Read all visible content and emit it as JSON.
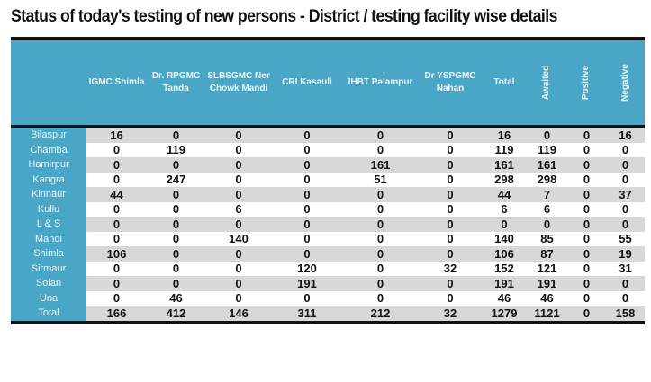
{
  "title": "Status of today's testing of new persons - District / testing facility wise details",
  "headers": [
    "",
    "IGMC Shimla",
    "Dr. RPGMC Tanda",
    "SLBSGMC Ner Chowk Mandi",
    "CRI Kasauli",
    "IHBT Palampur",
    "Dr YSPGMC Nahan",
    "Total",
    "Awaited",
    "Positive",
    "Negative"
  ],
  "rows": [
    [
      "Bilaspur",
      "16",
      "0",
      "0",
      "0",
      "0",
      "0",
      "16",
      "0",
      "0",
      "16"
    ],
    [
      "Chamba",
      "0",
      "119",
      "0",
      "0",
      "0",
      "0",
      "119",
      "119",
      "0",
      "0"
    ],
    [
      "Hamirpur",
      "0",
      "0",
      "0",
      "0",
      "161",
      "0",
      "161",
      "161",
      "0",
      "0"
    ],
    [
      "Kangra",
      "0",
      "247",
      "0",
      "0",
      "51",
      "0",
      "298",
      "298",
      "0",
      "0"
    ],
    [
      "Kinnaur",
      "44",
      "0",
      "0",
      "0",
      "0",
      "0",
      "44",
      "7",
      "0",
      "37"
    ],
    [
      "Kullu",
      "0",
      "0",
      "6",
      "0",
      "0",
      "0",
      "6",
      "6",
      "0",
      "0"
    ],
    [
      "L & S",
      "0",
      "0",
      "0",
      "0",
      "0",
      "0",
      "0",
      "0",
      "0",
      "0"
    ],
    [
      "Mandi",
      "0",
      "0",
      "140",
      "0",
      "0",
      "0",
      "140",
      "85",
      "0",
      "55"
    ],
    [
      "Shimla",
      "106",
      "0",
      "0",
      "0",
      "0",
      "0",
      "106",
      "87",
      "0",
      "19"
    ],
    [
      "Sirmaur",
      "0",
      "0",
      "0",
      "120",
      "0",
      "32",
      "152",
      "121",
      "0",
      "31"
    ],
    [
      "Solan",
      "0",
      "0",
      "0",
      "191",
      "0",
      "0",
      "191",
      "191",
      "0",
      "0"
    ],
    [
      "Una",
      "0",
      "46",
      "0",
      "0",
      "0",
      "0",
      "46",
      "46",
      "0",
      "0"
    ],
    [
      "Total",
      "166",
      "412",
      "146",
      "311",
      "212",
      "32",
      "1279",
      "1121",
      "0",
      "158"
    ]
  ]
}
